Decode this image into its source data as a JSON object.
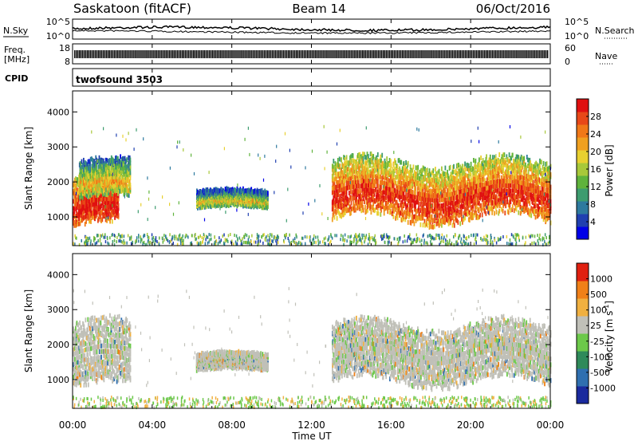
{
  "header": {
    "station": "Saskatoon (fitACF)",
    "beam": "Beam 14",
    "date": "06/Oct/2016"
  },
  "noise_panel": {
    "left_label": "N.Sky",
    "right_label": "N.Search",
    "left_ticks": [
      "10^5",
      "10^0"
    ],
    "right_ticks": [
      "10^5",
      "10^0"
    ]
  },
  "freq_panel": {
    "left_label_line1": "Freq.",
    "left_label_line2": "[MHz]",
    "left_ticks": [
      "18",
      "8"
    ],
    "right_label": "Nave",
    "right_ticks": [
      "60",
      "0"
    ]
  },
  "cpid_panel": {
    "label": "CPID",
    "value": "twofsound 3503"
  },
  "chart_data": [
    {
      "type": "heatmap",
      "parameter": "Power",
      "ylabel": "Slant Range [km]",
      "ylim": [
        180,
        4600
      ],
      "yticks": [
        "4000",
        "3000",
        "2000",
        "1000"
      ],
      "colorbar_label": "Power [dB]",
      "colorbar_ticks": [
        "28",
        "24",
        "20",
        "16",
        "12",
        "8",
        "4"
      ],
      "colorbar_colors": [
        "#0000e8",
        "#2040b0",
        "#2e7a9e",
        "#3d9c6f",
        "#5fb33c",
        "#a8c83a",
        "#e8d030",
        "#f0a020",
        "#f07818",
        "#e84818",
        "#e01010"
      ],
      "features": [
        {
          "t_start": 0.0,
          "t_end": 2.3,
          "range_low": 700,
          "range_high": 2100,
          "level": 0.62
        },
        {
          "t_start": 0.3,
          "t_end": 2.9,
          "range_low": 1500,
          "range_high": 2600,
          "level": 0.25
        },
        {
          "t_start": 6.2,
          "t_end": 9.8,
          "range_low": 1250,
          "range_high": 1750,
          "level": 0.18
        },
        {
          "t_start": 13.0,
          "t_end": 24.0,
          "range_low": 900,
          "range_high": 2600,
          "level": 0.55
        }
      ]
    },
    {
      "type": "heatmap",
      "parameter": "Velocity",
      "ylabel": "Slant Range [km]",
      "ylim": [
        180,
        4600
      ],
      "yticks": [
        "4000",
        "3000",
        "2000",
        "1000"
      ],
      "colorbar_label": "Velocity [m s^-1]",
      "colorbar_ticks": [
        "1000",
        "500",
        "100",
        "25",
        "-25",
        "-100",
        "-500",
        "-1000"
      ],
      "colorbar_colors": [
        "#1a2a9e",
        "#2f6fb0",
        "#2f8a5a",
        "#6cc94a",
        "#c0c0b8",
        "#f0b040",
        "#f08018",
        "#e02010"
      ],
      "features": [
        {
          "t_start": 0.0,
          "t_end": 2.9,
          "range_low": 700,
          "range_high": 2600,
          "level": 0.5
        },
        {
          "t_start": 6.2,
          "t_end": 9.8,
          "range_low": 1250,
          "range_high": 1750,
          "level": 0.5
        },
        {
          "t_start": 13.0,
          "t_end": 24.0,
          "range_low": 900,
          "range_high": 2600,
          "level": 0.5
        }
      ]
    }
  ],
  "x_axis": {
    "label": "Time UT",
    "ticks": [
      "00:00",
      "04:00",
      "08:00",
      "12:00",
      "16:00",
      "20:00",
      "00:00"
    ]
  },
  "colors": {
    "line": "#000000",
    "background": "#ffffff"
  }
}
